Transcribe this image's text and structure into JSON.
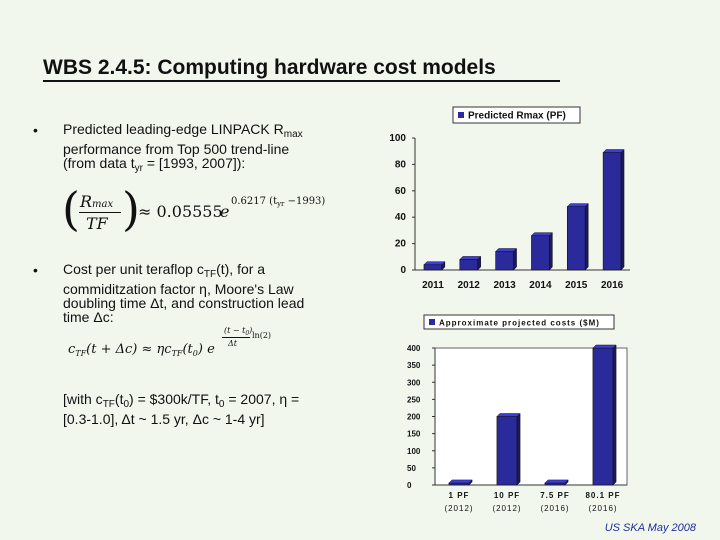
{
  "page_title": "WBS 2.4.5: Computing hardware cost models",
  "bullet_symbol": "•",
  "bullet1": {
    "line1_prefix": "Predicted leading-edge LINPACK R",
    "line1_sub": "max",
    "line2": "performance from Top 500 trend-line",
    "line3_prefix": "(from data t",
    "line3_sub": "yr",
    "line3_suffix": " = [1993, 2007]):"
  },
  "equation1": {
    "lhs_num": "R",
    "lhs_num_sub": "max",
    "lhs_den": "TF",
    "approx": "≈ 0.05555",
    "base": "e",
    "exponent": "0.6217 (t",
    "exponent_sub": "yr",
    "exponent_suffix": " −1993)"
  },
  "bullet2": {
    "line1_prefix": "Cost per unit teraflop c",
    "line1_sub": "TF",
    "line1_suffix": "(t), for a",
    "line2": "commiditzation factor η, Moore's Law",
    "line3": "doubling time Δt, and construction lead",
    "line4": "time Δc:"
  },
  "equation2": {
    "lhs": "c",
    "lhs_sub": "TF",
    "lhs_arg": "(t + Δc) ≈ ηc",
    "rhs_sub": "TF",
    "rhs_arg": "(t",
    "rhs_arg_sub": "0",
    "rhs_close": ") e",
    "exp_num": "(t − t",
    "exp_num_sub": "0",
    "exp_num_close": ")",
    "exp_den": "Δt",
    "exp_suffix": "ln(2)"
  },
  "bracket_note": {
    "line1_a": "[with c",
    "line1_sub": "TF",
    "line1_b": "(t",
    "line1_sub2": "0",
    "line1_c": ") = $300k/TF, t",
    "line1_sub3": "0",
    "line1_d": " = 2007, η =",
    "line2": "[0.3-1.0], Δt ~ 1.5 yr, Δc ~ 1-4 yr]"
  },
  "footer": "US SKA May 2008",
  "chart_data": [
    {
      "type": "bar",
      "categories": [
        "2011",
        "2012",
        "2013",
        "2014",
        "2015",
        "2016"
      ],
      "series": [
        {
          "name": "Predicted Rmax (PF)",
          "values": [
            4,
            8,
            14,
            26,
            48,
            89
          ]
        }
      ],
      "ylim": [
        0,
        100
      ],
      "yticks": [
        0,
        20,
        40,
        60,
        80,
        100
      ],
      "ytick_labels": [
        "0",
        "20",
        "40",
        "60",
        "80",
        "100"
      ],
      "grid": false,
      "legend": "top-right",
      "bar_color": "#2a2a9a"
    },
    {
      "type": "bar",
      "categories": [
        "1 PF",
        "10 PF",
        "7.5 PF",
        "80.1 PF"
      ],
      "category_sublabels": [
        "(2012)",
        "(2012)",
        "(2016)",
        "(2016)"
      ],
      "series": [
        {
          "name": "Approximate projected costs ($M)",
          "values": [
            6,
            200,
            6,
            400
          ]
        }
      ],
      "ylim": [
        0,
        400
      ],
      "yticks": [
        0,
        50,
        100,
        150,
        200,
        250,
        300,
        350,
        400
      ],
      "ytick_labels": [
        "0",
        "50",
        "100",
        "150",
        "200",
        "250",
        "300",
        "350",
        "400"
      ],
      "grid": false,
      "legend": "top",
      "bar_color": "#2a2a9a"
    }
  ]
}
